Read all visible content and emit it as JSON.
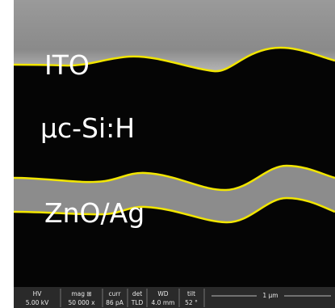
{
  "labels": {
    "top_layer": "ITO",
    "middle_layer": "μc-Si:H",
    "bottom_layer": "ZnO/Ag"
  },
  "info_bar": {
    "hv_label": "HV",
    "hv_value": "5.00 kV",
    "mag_label": "mag ⊞",
    "mag_value": "50 000 x",
    "curr_label": "curr",
    "curr_value": "86 pA",
    "det_label": "det",
    "det_value": "TLD",
    "wd_label": "WD",
    "wd_value": "4.0 mm",
    "tilt_label": "tilt",
    "tilt_value": "52 °",
    "scale_label": "1 μm"
  }
}
